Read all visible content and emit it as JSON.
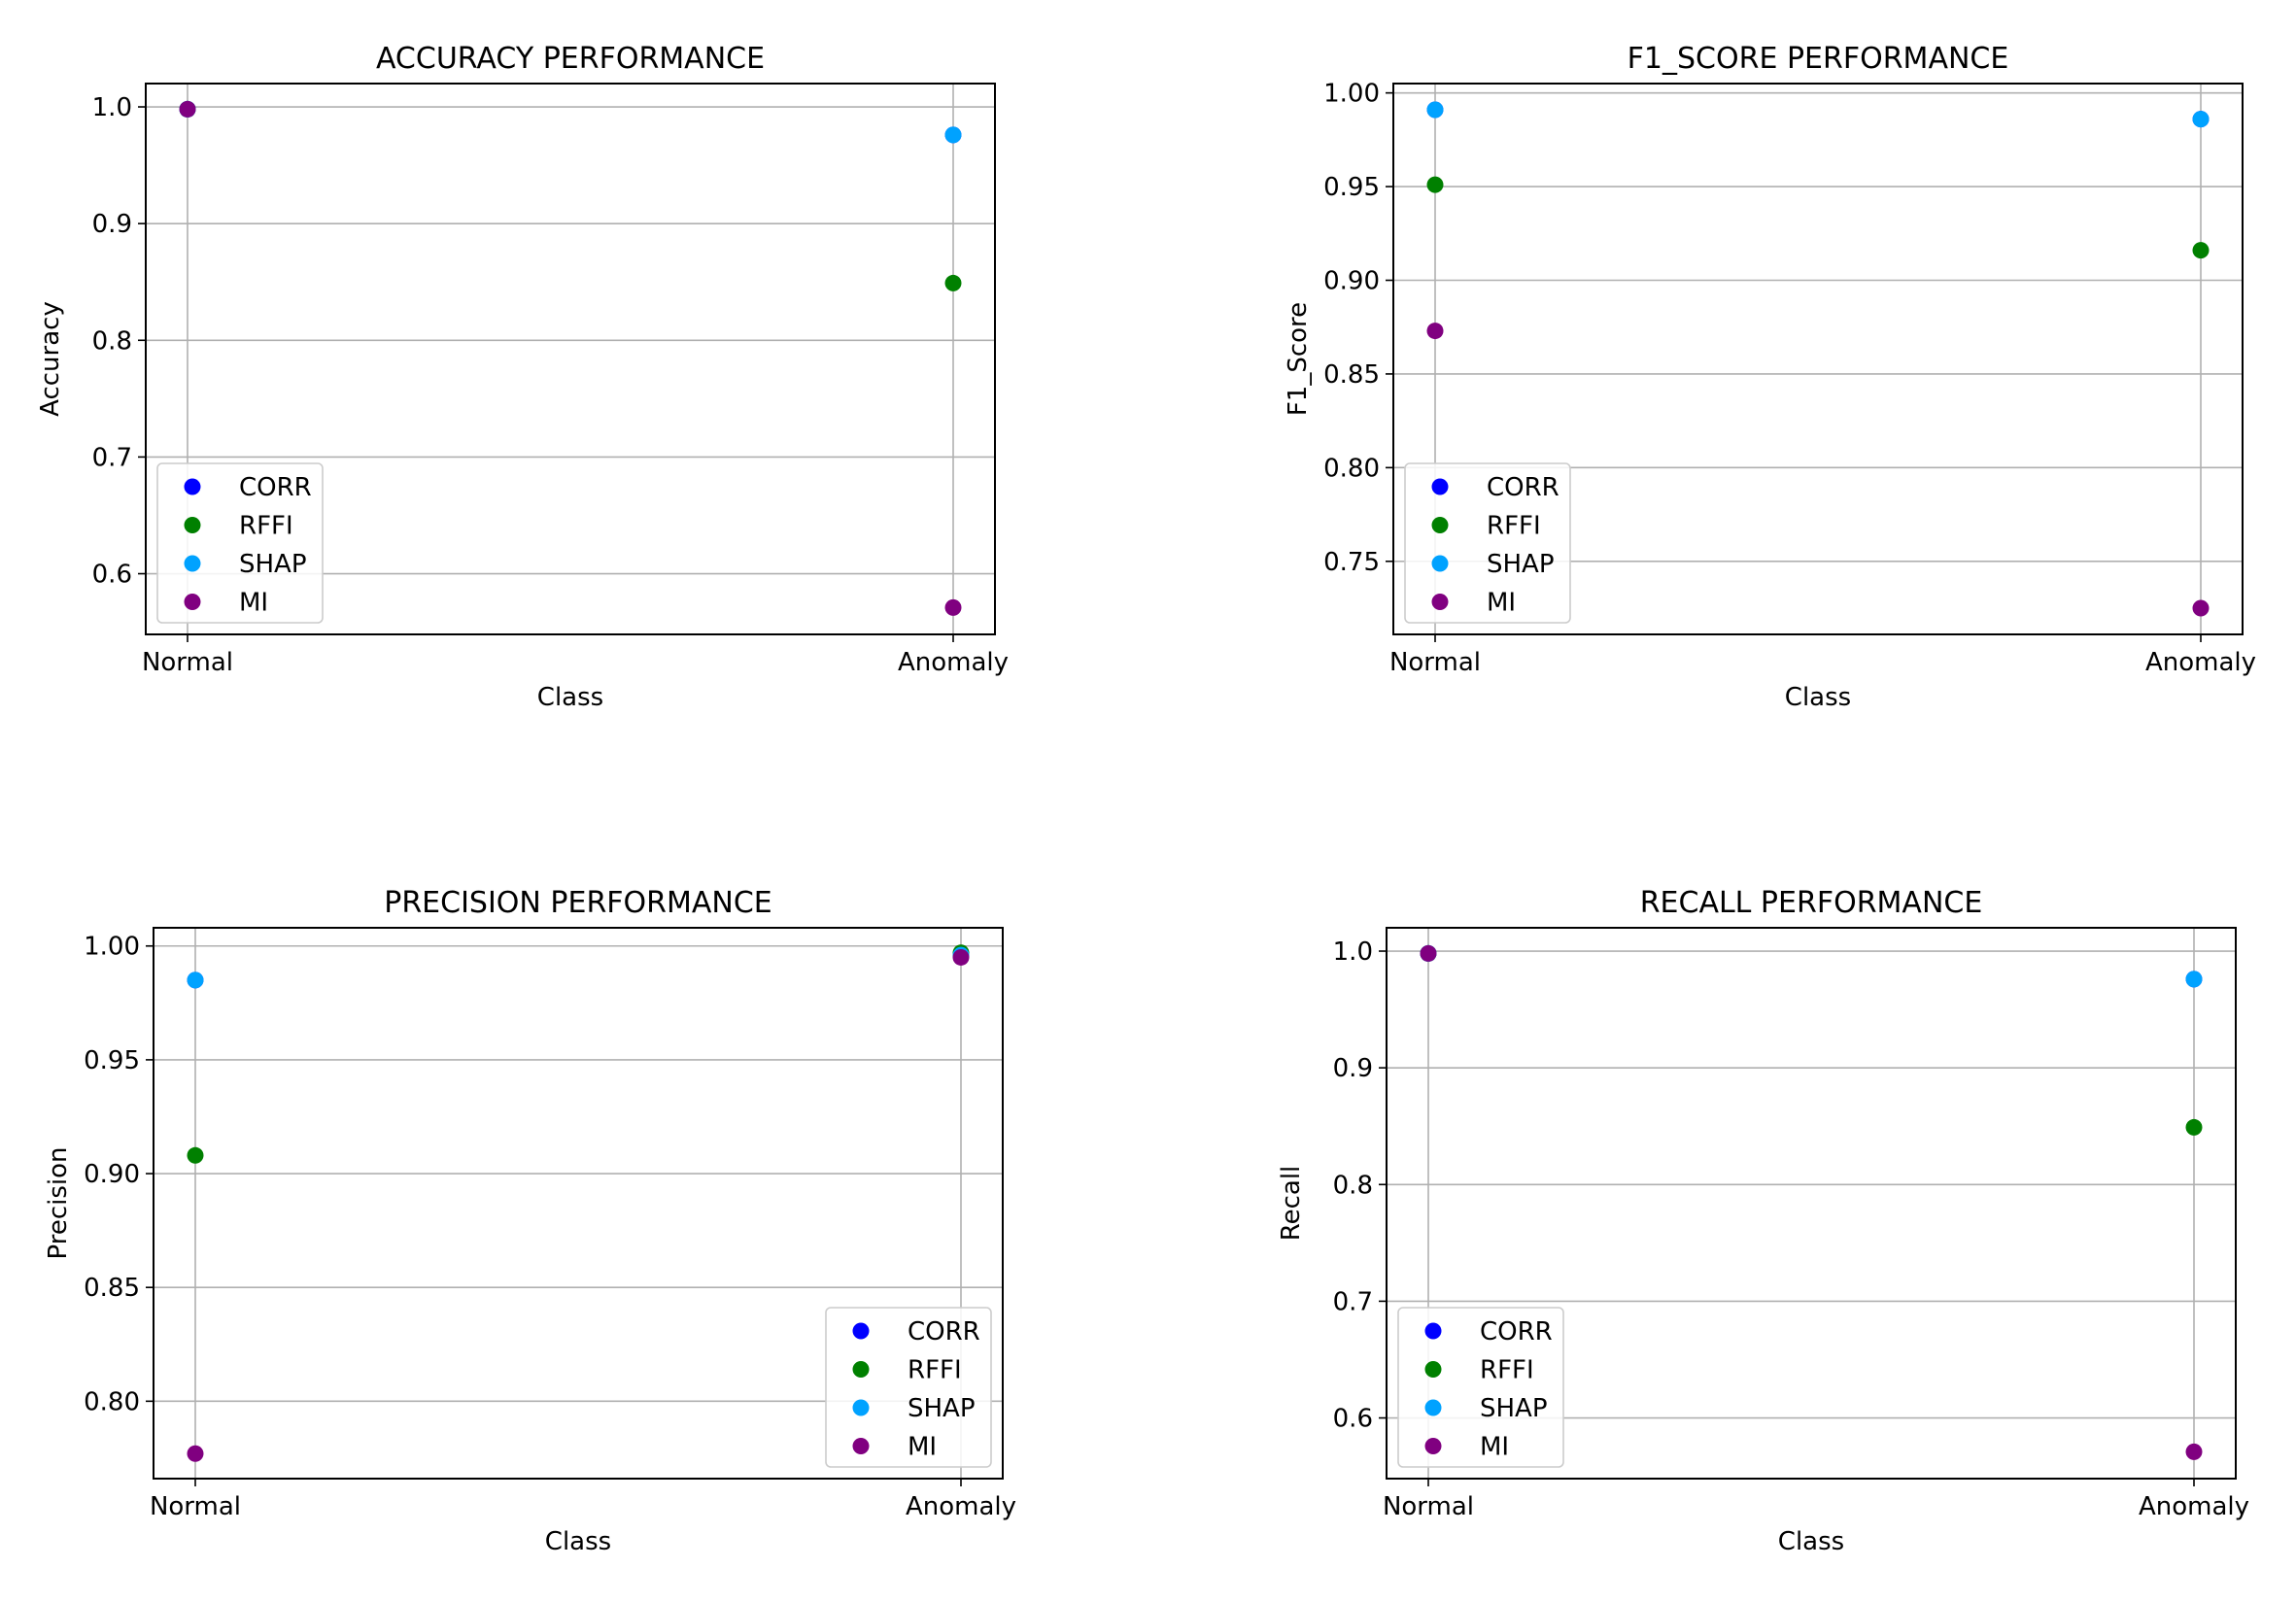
{
  "colors": {
    "CORR": "#0000ff",
    "RFFI": "#008000",
    "SHAP": "#00a2ff",
    "MI": "#800080",
    "grid": "#b0b0b0",
    "legend_border": "#cccccc"
  },
  "chart_data": [
    {
      "type": "scatter",
      "title": "ACCURACY PERFORMANCE",
      "xlabel": "Class",
      "ylabel": "Accuracy",
      "categories": [
        "Normal",
        "Anomaly"
      ],
      "ylim": [
        0.548,
        1.02
      ],
      "yticks": [
        0.6,
        0.7,
        0.8,
        0.9,
        1.0
      ],
      "ytick_labels": [
        "0.6",
        "0.7",
        "0.8",
        "0.9",
        "1.0"
      ],
      "grid": true,
      "legend_position": "lower-left",
      "series": [
        {
          "name": "CORR",
          "values": [
            0.998,
            0.976
          ]
        },
        {
          "name": "RFFI",
          "values": [
            0.998,
            0.849
          ]
        },
        {
          "name": "SHAP",
          "values": [
            0.998,
            0.976
          ]
        },
        {
          "name": "MI",
          "values": [
            0.998,
            0.571
          ]
        }
      ]
    },
    {
      "type": "scatter",
      "title": "F1_SCORE PERFORMANCE",
      "xlabel": "Class",
      "ylabel": "F1_Score",
      "categories": [
        "Normal",
        "Anomaly"
      ],
      "ylim": [
        0.711,
        1.005
      ],
      "yticks": [
        0.75,
        0.8,
        0.85,
        0.9,
        0.95,
        1.0
      ],
      "ytick_labels": [
        "0.75",
        "0.80",
        "0.85",
        "0.90",
        "0.95",
        "1.00"
      ],
      "grid": true,
      "legend_position": "lower-left",
      "series": [
        {
          "name": "CORR",
          "values": [
            0.991,
            0.986
          ]
        },
        {
          "name": "RFFI",
          "values": [
            0.951,
            0.916
          ]
        },
        {
          "name": "SHAP",
          "values": [
            0.991,
            0.986
          ]
        },
        {
          "name": "MI",
          "values": [
            0.873,
            0.725
          ]
        }
      ]
    },
    {
      "type": "scatter",
      "title": "PRECISION PERFORMANCE",
      "xlabel": "Class",
      "ylabel": "Precision",
      "categories": [
        "Normal",
        "Anomaly"
      ],
      "ylim": [
        0.766,
        1.008
      ],
      "yticks": [
        0.8,
        0.85,
        0.9,
        0.95,
        1.0
      ],
      "ytick_labels": [
        "0.80",
        "0.85",
        "0.90",
        "0.95",
        "1.00"
      ],
      "grid": true,
      "legend_position": "lower-right",
      "series": [
        {
          "name": "CORR",
          "values": [
            0.985,
            0.996
          ]
        },
        {
          "name": "RFFI",
          "values": [
            0.908,
            0.997
          ]
        },
        {
          "name": "SHAP",
          "values": [
            0.985,
            0.996
          ]
        },
        {
          "name": "MI",
          "values": [
            0.777,
            0.995
          ]
        }
      ]
    },
    {
      "type": "scatter",
      "title": "RECALL PERFORMANCE",
      "xlabel": "Class",
      "ylabel": "Recall",
      "categories": [
        "Normal",
        "Anomaly"
      ],
      "ylim": [
        0.548,
        1.02
      ],
      "yticks": [
        0.6,
        0.7,
        0.8,
        0.9,
        1.0
      ],
      "ytick_labels": [
        "0.6",
        "0.7",
        "0.8",
        "0.9",
        "1.0"
      ],
      "grid": true,
      "legend_position": "lower-left",
      "series": [
        {
          "name": "CORR",
          "values": [
            0.998,
            0.976
          ]
        },
        {
          "name": "RFFI",
          "values": [
            0.998,
            0.849
          ]
        },
        {
          "name": "SHAP",
          "values": [
            0.998,
            0.976
          ]
        },
        {
          "name": "MI",
          "values": [
            0.998,
            0.571
          ]
        }
      ]
    }
  ]
}
